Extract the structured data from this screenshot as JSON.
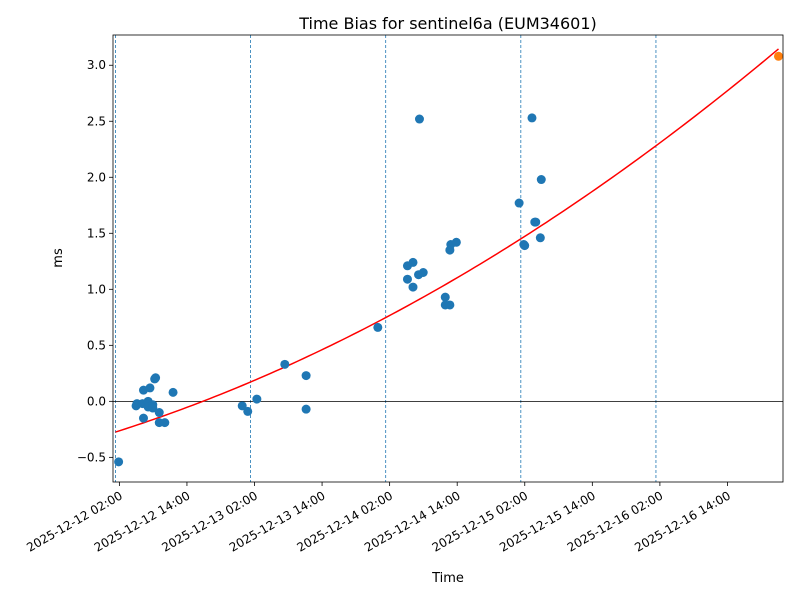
{
  "chart_data": {
    "type": "scatter",
    "title": "Time Bias for sentinel6a (EUM34601)",
    "xlabel": "Time",
    "ylabel": "ms",
    "x_is_datetime": true,
    "xlim": [
      "2025-12-12T00:52:00",
      "2025-12-16T23:52:00"
    ],
    "ylim": [
      -0.72,
      3.27
    ],
    "x_tick_values": [
      "2025-12-12T02:00",
      "2025-12-12T14:00",
      "2025-12-13T02:00",
      "2025-12-13T14:00",
      "2025-12-14T02:00",
      "2025-12-14T14:00",
      "2025-12-15T02:00",
      "2025-12-15T14:00",
      "2025-12-16T02:00",
      "2025-12-16T14:00"
    ],
    "x_tick_labels": [
      "2025-12-12 02:00",
      "2025-12-12 14:00",
      "2025-12-13 02:00",
      "2025-12-13 14:00",
      "2025-12-14 02:00",
      "2025-12-14 14:00",
      "2025-12-15 02:00",
      "2025-12-15 14:00",
      "2025-12-16 02:00",
      "2025-12-16 14:00"
    ],
    "y_ticks": [
      -0.5,
      0.0,
      0.5,
      1.0,
      1.5,
      2.0,
      2.5,
      3.0
    ],
    "y_tick_labels": [
      "−0.5",
      "0.0",
      "0.5",
      "1.0",
      "1.5",
      "2.0",
      "2.5",
      "3.0"
    ],
    "vertical_lines": [
      "2025-12-12T01:18",
      "2025-12-13T01:18",
      "2025-12-14T01:18",
      "2025-12-15T01:18",
      "2025-12-16T01:18"
    ],
    "horizontal_line": 0,
    "series": [
      {
        "type": "scatter",
        "color": "#1f77b4",
        "points": [
          [
            "2025-12-12T01:52",
            -0.54
          ],
          [
            "2025-12-12T04:58",
            -0.04
          ],
          [
            "2025-12-12T05:08",
            -0.02
          ],
          [
            "2025-12-12T06:07",
            -0.02
          ],
          [
            "2025-12-12T06:17",
            0.1
          ],
          [
            "2025-12-12T06:17",
            -0.15
          ],
          [
            "2025-12-12T07:06",
            0.0
          ],
          [
            "2025-12-12T07:06",
            -0.05
          ],
          [
            "2025-12-12T07:26",
            0.12
          ],
          [
            "2025-12-12T07:56",
            -0.03
          ],
          [
            "2025-12-12T07:56",
            -0.06
          ],
          [
            "2025-12-12T08:26",
            0.21
          ],
          [
            "2025-12-12T08:16",
            0.2
          ],
          [
            "2025-12-12T09:05",
            -0.1
          ],
          [
            "2025-12-12T09:05",
            -0.19
          ],
          [
            "2025-12-12T10:04",
            -0.19
          ],
          [
            "2025-12-12T11:32",
            0.08
          ],
          [
            "2025-12-12T23:49",
            -0.04
          ],
          [
            "2025-12-13T00:48",
            -0.09
          ],
          [
            "2025-12-13T02:25",
            0.02
          ],
          [
            "2025-12-13T07:23",
            0.33
          ],
          [
            "2025-12-13T11:10",
            0.23
          ],
          [
            "2025-12-13T11:10",
            -0.07
          ],
          [
            "2025-12-13T23:54",
            0.66
          ],
          [
            "2025-12-14T05:10",
            1.21
          ],
          [
            "2025-12-14T05:10",
            1.09
          ],
          [
            "2025-12-14T06:09",
            1.24
          ],
          [
            "2025-12-14T06:09",
            1.02
          ],
          [
            "2025-12-14T07:08",
            1.13
          ],
          [
            "2025-12-14T07:18",
            2.52
          ],
          [
            "2025-12-14T07:58",
            1.15
          ],
          [
            "2025-12-14T11:53",
            0.93
          ],
          [
            "2025-12-14T11:53",
            0.86
          ],
          [
            "2025-12-14T12:42",
            0.86
          ],
          [
            "2025-12-14T12:42",
            1.35
          ],
          [
            "2025-12-14T12:52",
            1.4
          ],
          [
            "2025-12-14T13:51",
            1.42
          ],
          [
            "2025-12-15T01:00",
            1.77
          ],
          [
            "2025-12-15T01:50",
            1.4
          ],
          [
            "2025-12-15T01:59",
            1.39
          ],
          [
            "2025-12-15T03:17",
            2.53
          ],
          [
            "2025-12-15T03:47",
            1.6
          ],
          [
            "2025-12-15T03:57",
            1.6
          ],
          [
            "2025-12-15T04:46",
            1.46
          ],
          [
            "2025-12-15T04:56",
            1.98
          ]
        ]
      },
      {
        "type": "line",
        "color": "#ff0000",
        "fit": "quadratic",
        "x_range": [
          "2025-12-12T01:18",
          "2025-12-16T23:04"
        ],
        "points": [
          [
            "2025-12-12T01:18",
            -0.23
          ],
          [
            "2025-12-12T23:52",
            0.1
          ],
          [
            "2025-12-13T22:38",
            0.62
          ],
          [
            "2025-12-14T19:24",
            1.25
          ],
          [
            "2025-12-15T17:07",
            2.11
          ],
          [
            "2025-12-16T23:04",
            3.09
          ]
        ]
      },
      {
        "type": "scatter",
        "color": "#ff7f0e",
        "points": [
          [
            "2025-12-16T23:04",
            3.08
          ]
        ]
      }
    ]
  }
}
